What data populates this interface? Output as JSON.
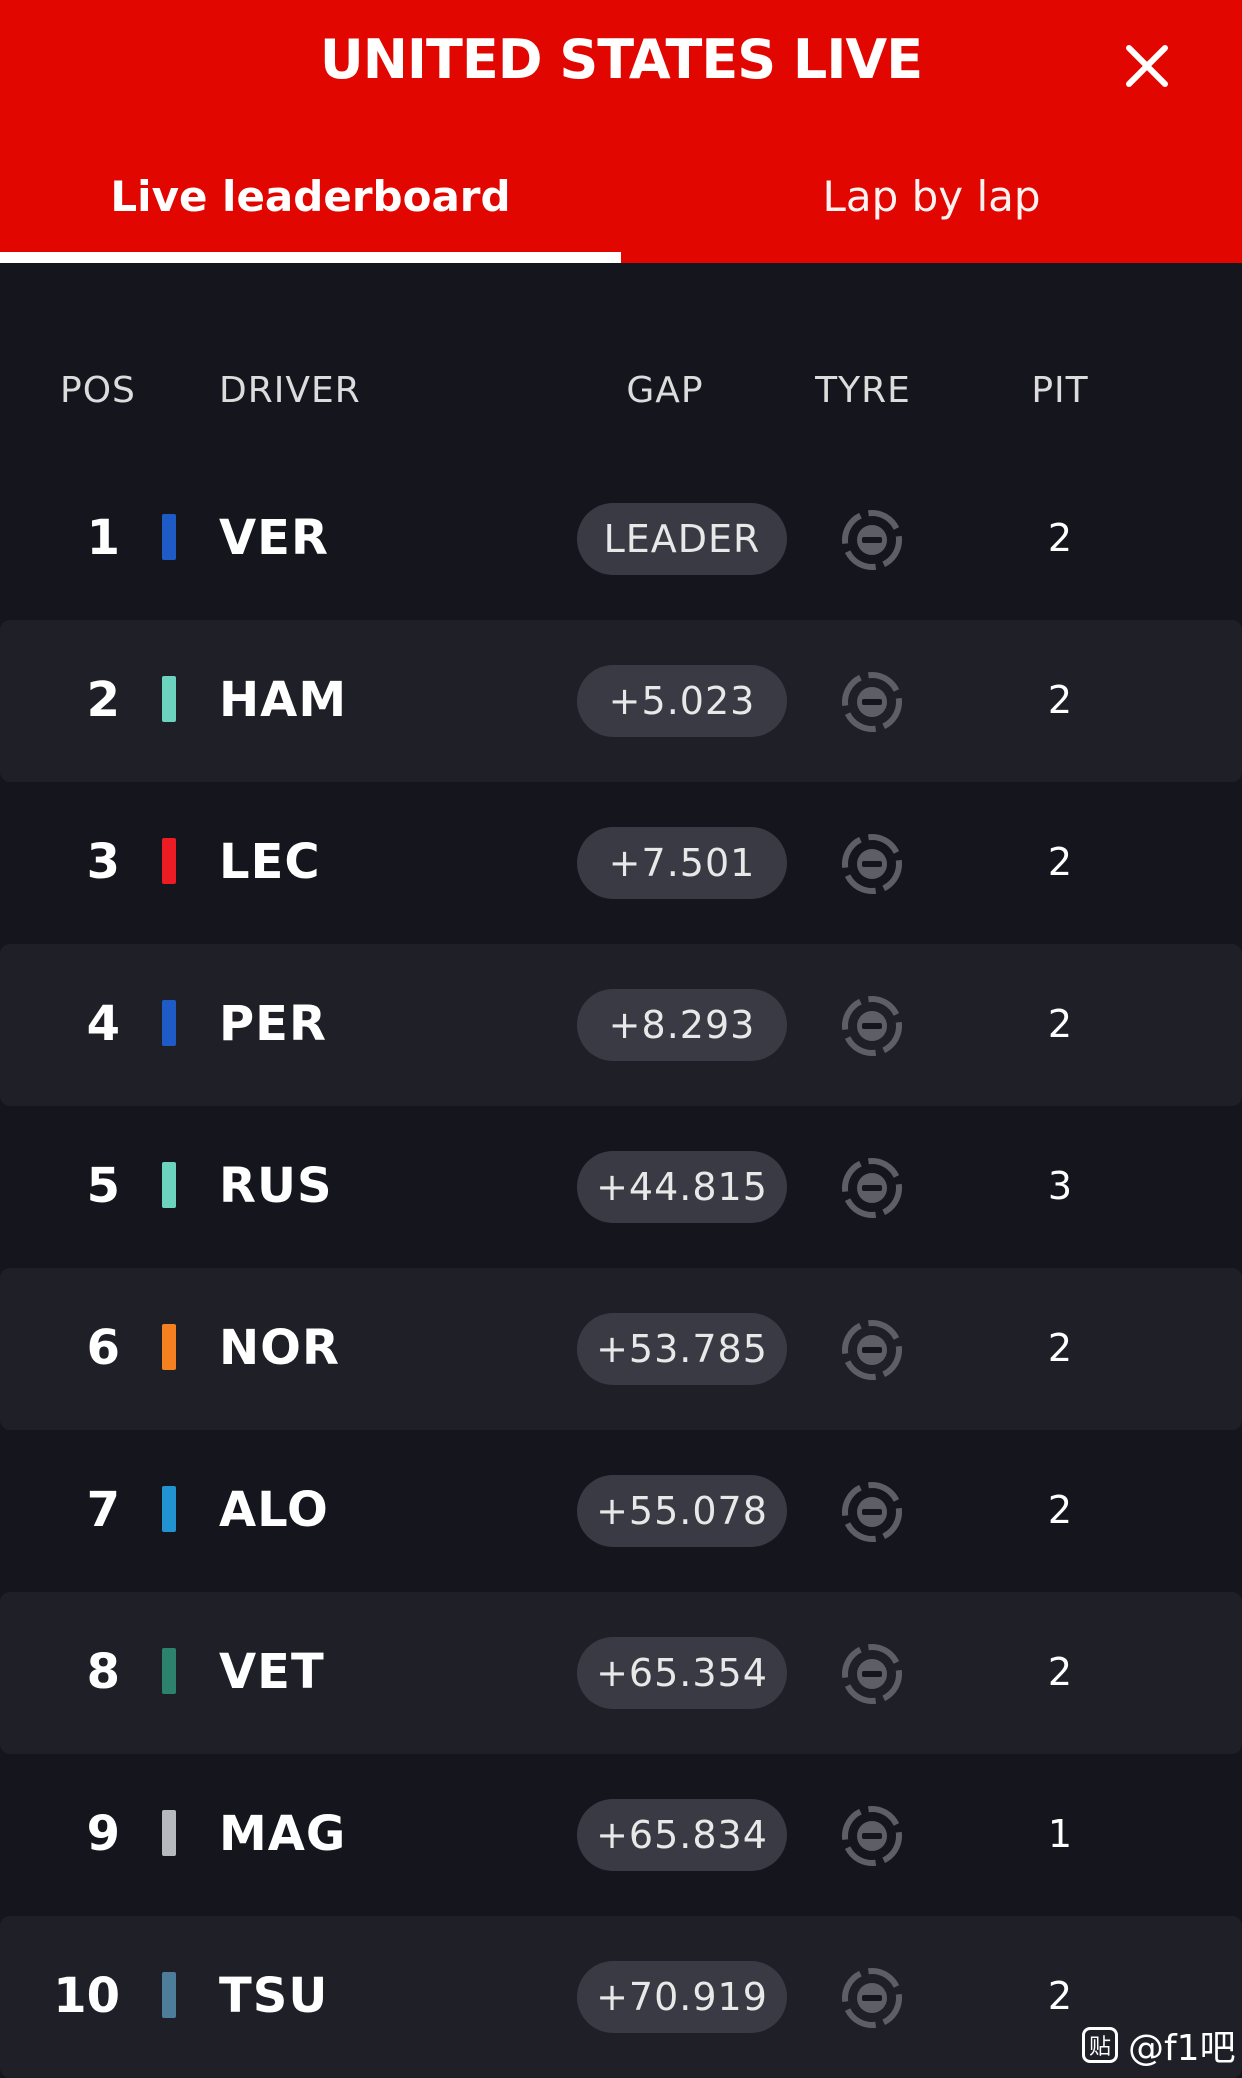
{
  "header": {
    "title": "UNITED STATES LIVE",
    "tabs": [
      {
        "label": "Live leaderboard",
        "active": true
      },
      {
        "label": "Lap by lap",
        "active": false
      }
    ]
  },
  "columns": {
    "pos": "POS",
    "driver": "DRIVER",
    "gap": "GAP",
    "tyre": "TYRE",
    "pit": "PIT"
  },
  "rows": [
    {
      "pos": "1",
      "driver": "VER",
      "gap": "LEADER",
      "pit": "2",
      "team_color": "#1e5bc6"
    },
    {
      "pos": "2",
      "driver": "HAM",
      "gap": "+5.023",
      "pit": "2",
      "team_color": "#6cd3bf"
    },
    {
      "pos": "3",
      "driver": "LEC",
      "gap": "+7.501",
      "pit": "2",
      "team_color": "#ed1c24"
    },
    {
      "pos": "4",
      "driver": "PER",
      "gap": "+8.293",
      "pit": "2",
      "team_color": "#1e5bc6"
    },
    {
      "pos": "5",
      "driver": "RUS",
      "gap": "+44.815",
      "pit": "3",
      "team_color": "#6cd3bf"
    },
    {
      "pos": "6",
      "driver": "NOR",
      "gap": "+53.785",
      "pit": "2",
      "team_color": "#f58020"
    },
    {
      "pos": "7",
      "driver": "ALO",
      "gap": "+55.078",
      "pit": "2",
      "team_color": "#2293d1"
    },
    {
      "pos": "8",
      "driver": "VET",
      "gap": "+65.354",
      "pit": "2",
      "team_color": "#2d826d"
    },
    {
      "pos": "9",
      "driver": "MAG",
      "gap": "+65.834",
      "pit": "1",
      "team_color": "#b6babd"
    },
    {
      "pos": "10",
      "driver": "TSU",
      "gap": "+70.919",
      "pit": "2",
      "team_color": "#4e7c9b"
    }
  ],
  "tyre_icon": "unknown-tyre-icon",
  "watermark": {
    "logo": "贴",
    "text": "@f1吧"
  },
  "colors": {
    "header_red": "#e10600",
    "background": "#15151e",
    "row_alt": "#1f1f28",
    "pill": "#3a3a44"
  }
}
